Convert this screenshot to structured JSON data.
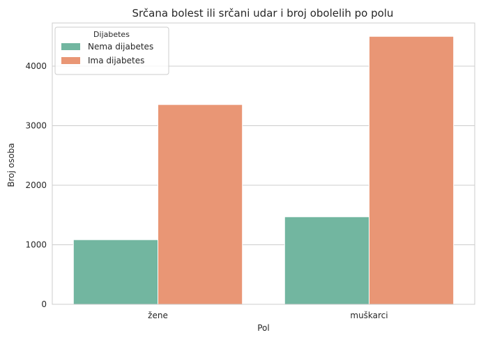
{
  "chart_data": {
    "type": "bar",
    "title": "Srčana bolest ili srčani udar i broj obolelih po polu",
    "xlabel": "Pol",
    "ylabel": "Broj osoba",
    "categories": [
      "žene",
      "muškarci"
    ],
    "series": [
      {
        "name": "Nema dijabetes",
        "values": [
          1085,
          1470
        ],
        "color": "#72b6a0"
      },
      {
        "name": "Ima dijabetes",
        "values": [
          3355,
          4500
        ],
        "color": "#e99675"
      }
    ],
    "ylim": [
      0,
      4725
    ],
    "yticks": [
      0,
      1000,
      2000,
      3000,
      4000
    ],
    "grid": true,
    "legend": {
      "title": "Dijabetes",
      "placement": "top-left"
    }
  }
}
